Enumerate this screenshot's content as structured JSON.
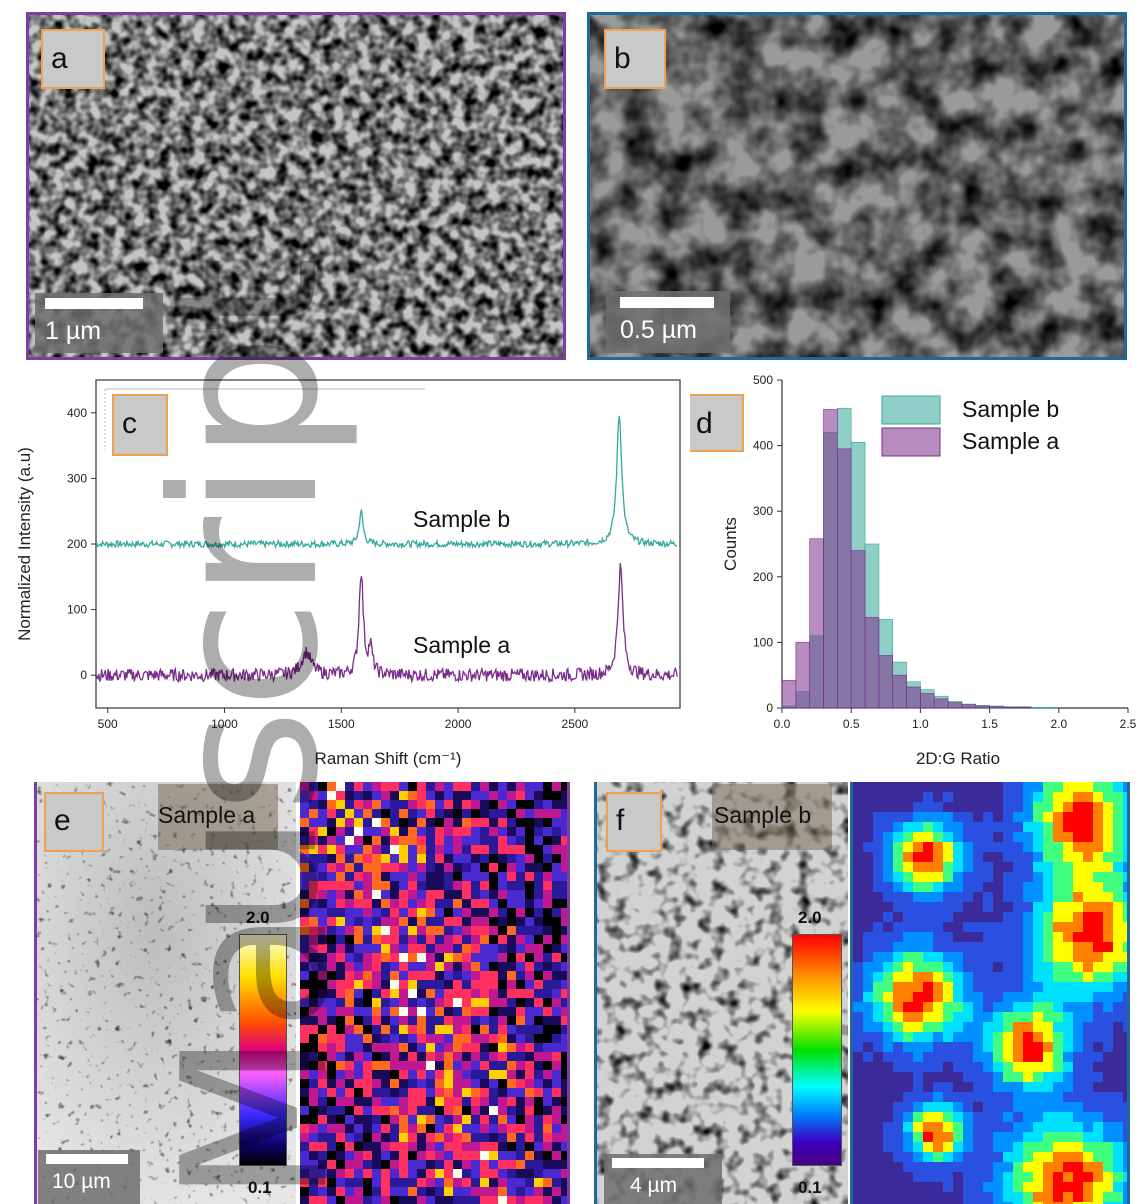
{
  "colors": {
    "frame_a": "#7a3fa0",
    "frame_b": "#1f6a99",
    "teal": "#35a89a",
    "purple": "#7b2d8b",
    "tag_border": "#f0a050"
  },
  "panels": {
    "a": {
      "label": "a",
      "scale": "1 µm"
    },
    "b": {
      "label": "b",
      "scale": "0.5 µm"
    },
    "c": {
      "label": "c"
    },
    "d": {
      "label": "d"
    },
    "e": {
      "label": "e",
      "sample": "Sample a",
      "scale": "10 µm",
      "cb_max": "2.0",
      "cb_min": "0.1"
    },
    "f": {
      "label": "f",
      "sample": "Sample b",
      "scale": "4 µm",
      "cb_max": "2.0",
      "cb_min": "0.1"
    }
  },
  "watermark": {
    "line1": "uscript",
    "line2": "Ma"
  },
  "chart_data": [
    {
      "type": "line",
      "xlabel": "Raman Shift (cm⁻¹)",
      "ylabel": "Normalized Intensity (a.u)",
      "xlim": [
        450,
        2950
      ],
      "ylim": [
        -50,
        450
      ],
      "xticks": [
        500,
        1000,
        1500,
        2000,
        2500
      ],
      "yticks": [
        0,
        100,
        200,
        300,
        400
      ],
      "series": [
        {
          "name": "Sample b",
          "color": "#35a89a",
          "offset": 200,
          "peaks": [
            {
              "x": 1585,
              "height": 50,
              "width": 10
            },
            {
              "x": 2690,
              "height": 198,
              "width": 13
            }
          ],
          "noise": 5
        },
        {
          "name": "Sample a",
          "color": "#7b2d8b",
          "offset": 0,
          "peaks": [
            {
              "x": 1350,
              "height": 35,
              "width": 25
            },
            {
              "x": 1585,
              "height": 158,
              "width": 11
            },
            {
              "x": 1625,
              "height": 40,
              "width": 10
            },
            {
              "x": 2695,
              "height": 165,
              "width": 13
            }
          ],
          "noise": 10
        }
      ]
    },
    {
      "type": "bar",
      "xlabel": "2D:G Ratio",
      "ylabel": "Counts",
      "xlim": [
        0,
        2.5
      ],
      "ylim": [
        0,
        500
      ],
      "xticks": [
        "0.0",
        "0.5",
        "1.0",
        "1.5",
        "2.0",
        "2.5"
      ],
      "yticks": [
        0,
        100,
        200,
        300,
        400,
        500
      ],
      "bin_width": 0.1,
      "legend_position": "top-right",
      "series": [
        {
          "name": "Sample b",
          "color": "#35a89a",
          "bins": [
            0.05,
            0.15,
            0.25,
            0.35,
            0.45,
            0.55,
            0.65,
            0.75,
            0.85,
            0.95,
            1.05,
            1.15,
            1.25,
            1.35,
            1.45,
            1.55,
            1.65,
            1.75,
            1.85,
            1.95
          ],
          "values": [
            3,
            25,
            110,
            420,
            457,
            405,
            250,
            135,
            70,
            40,
            28,
            18,
            10,
            6,
            4,
            3,
            2,
            2,
            1,
            1
          ]
        },
        {
          "name": "Sample a",
          "color": "#7b2d8b",
          "bins": [
            0.05,
            0.15,
            0.25,
            0.35,
            0.45,
            0.55,
            0.65,
            0.75,
            0.85,
            0.95,
            1.05,
            1.15,
            1.25,
            1.35,
            1.45,
            1.55,
            1.65,
            1.75,
            1.85,
            1.95
          ],
          "values": [
            42,
            100,
            258,
            455,
            395,
            240,
            138,
            80,
            50,
            32,
            22,
            14,
            8,
            5,
            3,
            2,
            1,
            1,
            0,
            0
          ]
        }
      ]
    }
  ]
}
